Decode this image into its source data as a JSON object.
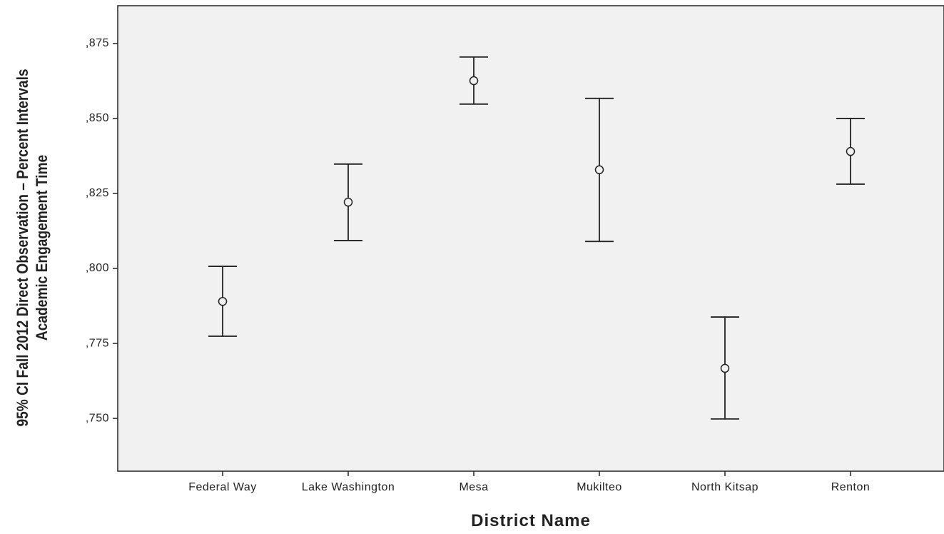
{
  "chart_data": {
    "type": "errorbar",
    "xlabel": "District Name",
    "ylabel": "95% CI Fall 2012 Direct Observation – Percent Intervals Academic Engagement Time",
    "categories": [
      "Federal Way",
      "Lake Washington",
      "Mesa",
      "Mukilteo",
      "North Kitsap",
      "Renton"
    ],
    "values": [
      0.789,
      0.8221,
      0.8626,
      0.8329,
      0.7667,
      0.839
    ],
    "lower": [
      0.7774,
      0.8093,
      0.8548,
      0.809,
      0.7498,
      0.8281
    ],
    "upper": [
      0.8007,
      0.8348,
      0.8705,
      0.8567,
      0.7838,
      0.85
    ],
    "color": "#222222",
    "ylim": [
      0.7324,
      0.8876
    ],
    "yticks": [
      {
        "value": 0.75,
        "label": ",750"
      },
      {
        "value": 0.775,
        "label": ",775"
      },
      {
        "value": 0.8,
        "label": ",800"
      },
      {
        "value": 0.825,
        "label": ",825"
      },
      {
        "value": 0.85,
        "label": ",850"
      },
      {
        "value": 0.875,
        "label": ",875"
      }
    ]
  }
}
